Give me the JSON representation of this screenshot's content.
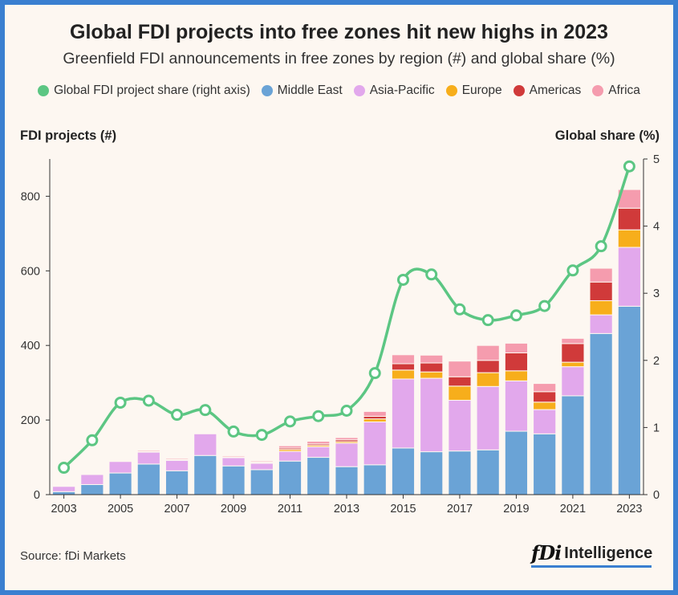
{
  "title": "Global FDI projects into free zones hit new highs in 2023",
  "subtitle": "Greenfield FDI announcements in free zones by region (#) and global share (%)",
  "left_axis_title": "FDI projects (#)",
  "right_axis_title": "Global share (%)",
  "source": "Source: fDi Markets",
  "brand": {
    "mark": "fDi",
    "name": "Intelligence"
  },
  "legend": [
    {
      "label": "Global FDI project share (right axis)",
      "color": "#5cc683",
      "shape": "circle"
    },
    {
      "label": "Middle East",
      "color": "#6aa3d6",
      "shape": "circle"
    },
    {
      "label": "Asia-Pacific",
      "color": "#e2a8ec",
      "shape": "circle"
    },
    {
      "label": "Europe",
      "color": "#f7ae1b",
      "shape": "circle"
    },
    {
      "label": "Americas",
      "color": "#d03a3a",
      "shape": "circle"
    },
    {
      "label": "Africa",
      "color": "#f59cae",
      "shape": "circle"
    }
  ],
  "chart_data": {
    "type": "bar",
    "stacked": true,
    "categories": [
      "2003",
      "2004",
      "2005",
      "2006",
      "2007",
      "2008",
      "2009",
      "2010",
      "2011",
      "2012",
      "2013",
      "2014",
      "2015",
      "2016",
      "2017",
      "2018",
      "2019",
      "2020",
      "2021",
      "2022",
      "2023"
    ],
    "x_tick_labels": [
      "2003",
      "2005",
      "2007",
      "2009",
      "2011",
      "2013",
      "2015",
      "2017",
      "2019",
      "2021",
      "2023"
    ],
    "series": [
      {
        "name": "Middle East",
        "color": "#6aa3d6",
        "values": [
          8,
          27,
          58,
          82,
          64,
          105,
          77,
          67,
          90,
          100,
          75,
          80,
          125,
          115,
          117,
          120,
          170,
          163,
          265,
          432,
          505
        ]
      },
      {
        "name": "Asia-Pacific",
        "color": "#e2a8ec",
        "values": [
          14,
          27,
          31,
          32,
          28,
          58,
          22,
          17,
          26,
          28,
          63,
          115,
          185,
          197,
          136,
          170,
          135,
          65,
          78,
          50,
          158
        ]
      },
      {
        "name": "Europe",
        "color": "#f7ae1b",
        "values": [
          0,
          0,
          2,
          1,
          2,
          0,
          1,
          2,
          5,
          4,
          4,
          8,
          24,
          17,
          38,
          37,
          27,
          20,
          12,
          38,
          47
        ]
      },
      {
        "name": "Americas",
        "color": "#d03a3a",
        "values": [
          0,
          0,
          1,
          1,
          1,
          0,
          1,
          1,
          4,
          4,
          5,
          7,
          17,
          24,
          25,
          33,
          48,
          28,
          50,
          50,
          58
        ]
      },
      {
        "name": "Africa",
        "color": "#f59cae",
        "values": [
          0,
          1,
          2,
          3,
          3,
          0,
          3,
          3,
          6,
          7,
          6,
          13,
          24,
          21,
          42,
          40,
          26,
          22,
          14,
          37,
          50
        ]
      }
    ],
    "line": {
      "name": "Global FDI project share (right axis)",
      "color": "#5cc683",
      "axis": "right",
      "values": [
        0.4,
        0.81,
        1.37,
        1.4,
        1.19,
        1.26,
        0.94,
        0.89,
        1.09,
        1.17,
        1.25,
        1.81,
        3.2,
        3.28,
        2.76,
        2.6,
        2.67,
        2.81,
        3.34,
        3.7,
        4.89
      ]
    },
    "ylim": [
      0,
      900
    ],
    "y_ticks": [
      0,
      200,
      400,
      600,
      800
    ],
    "y2lim": [
      0,
      5
    ],
    "y2_ticks": [
      0,
      1,
      2,
      3,
      4,
      5
    ]
  }
}
